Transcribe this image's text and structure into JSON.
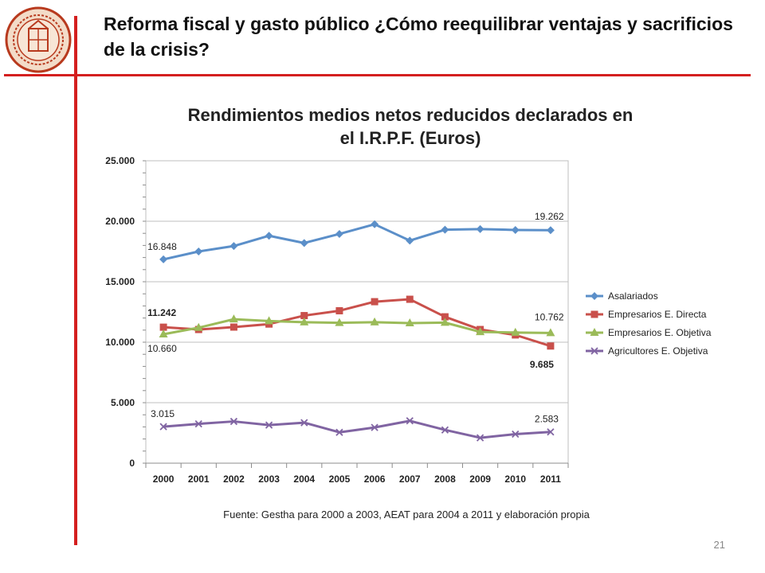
{
  "slide": {
    "title": "Reforma fiscal y gasto público ¿Cómo reequilibrar ventajas y sacrificios de la crisis?",
    "source": "Fuente: Gestha para  2000 a 2003, AEAT para 2004 a 2011 y elaboración propia",
    "page_number": "21",
    "accent_color": "#d41f1f",
    "logo_icon": "university-seal-icon"
  },
  "chart_data": {
    "type": "line",
    "title": "Rendimientos medios netos reducidos declarados en el I.R.P.F. (Euros)",
    "title_lines": [
      "Rendimientos medios netos reducidos declarados en",
      "el I.R.P.F. (Euros)"
    ],
    "categories": [
      "2000",
      "2001",
      "2002",
      "2003",
      "2004",
      "2005",
      "2006",
      "2007",
      "2008",
      "2009",
      "2010",
      "2011"
    ],
    "ylim": [
      0,
      25000
    ],
    "yticks": [
      0,
      5000,
      10000,
      15000,
      20000,
      25000
    ],
    "ytick_labels": [
      "0",
      "5.000",
      "10.000",
      "15.000",
      "20.000",
      "25.000"
    ],
    "grid": true,
    "legend": "right",
    "series": [
      {
        "name": "Asalariados",
        "color": "#5b8fc9",
        "marker": "diamond",
        "values": [
          16848,
          17500,
          17950,
          18800,
          18200,
          18950,
          19750,
          18400,
          19300,
          19350,
          19280,
          19262
        ]
      },
      {
        "name": "Empresarios E. Directa",
        "color": "#c9504b",
        "marker": "square",
        "values": [
          11242,
          11050,
          11250,
          11500,
          12200,
          12600,
          13350,
          13550,
          12100,
          11050,
          10600,
          9685
        ]
      },
      {
        "name": "Empresarios E. Objetiva",
        "color": "#9bbb59",
        "marker": "triangle",
        "values": [
          10660,
          11200,
          11900,
          11750,
          11650,
          11600,
          11650,
          11580,
          11620,
          10850,
          10800,
          10762
        ]
      },
      {
        "name": "Agricultores E. Objetiva",
        "color": "#8064a2",
        "marker": "x",
        "values": [
          3015,
          3250,
          3450,
          3150,
          3350,
          2550,
          2950,
          3500,
          2750,
          2100,
          2400,
          2583
        ]
      }
    ],
    "annotations": [
      {
        "text": "16.848",
        "series": 0,
        "index": 0,
        "bold": false
      },
      {
        "text": "19.262",
        "series": 0,
        "index": 11,
        "bold": false
      },
      {
        "text": "11.242",
        "series": 1,
        "index": 0,
        "bold": true
      },
      {
        "text": "9.685",
        "series": 1,
        "index": 11,
        "bold": true
      },
      {
        "text": "10.660",
        "series": 2,
        "index": 0,
        "bold": false
      },
      {
        "text": "10.762",
        "series": 2,
        "index": 11,
        "bold": false
      },
      {
        "text": "3.015",
        "series": 3,
        "index": 0,
        "bold": false
      },
      {
        "text": "2.583",
        "series": 3,
        "index": 11,
        "bold": false
      }
    ]
  }
}
